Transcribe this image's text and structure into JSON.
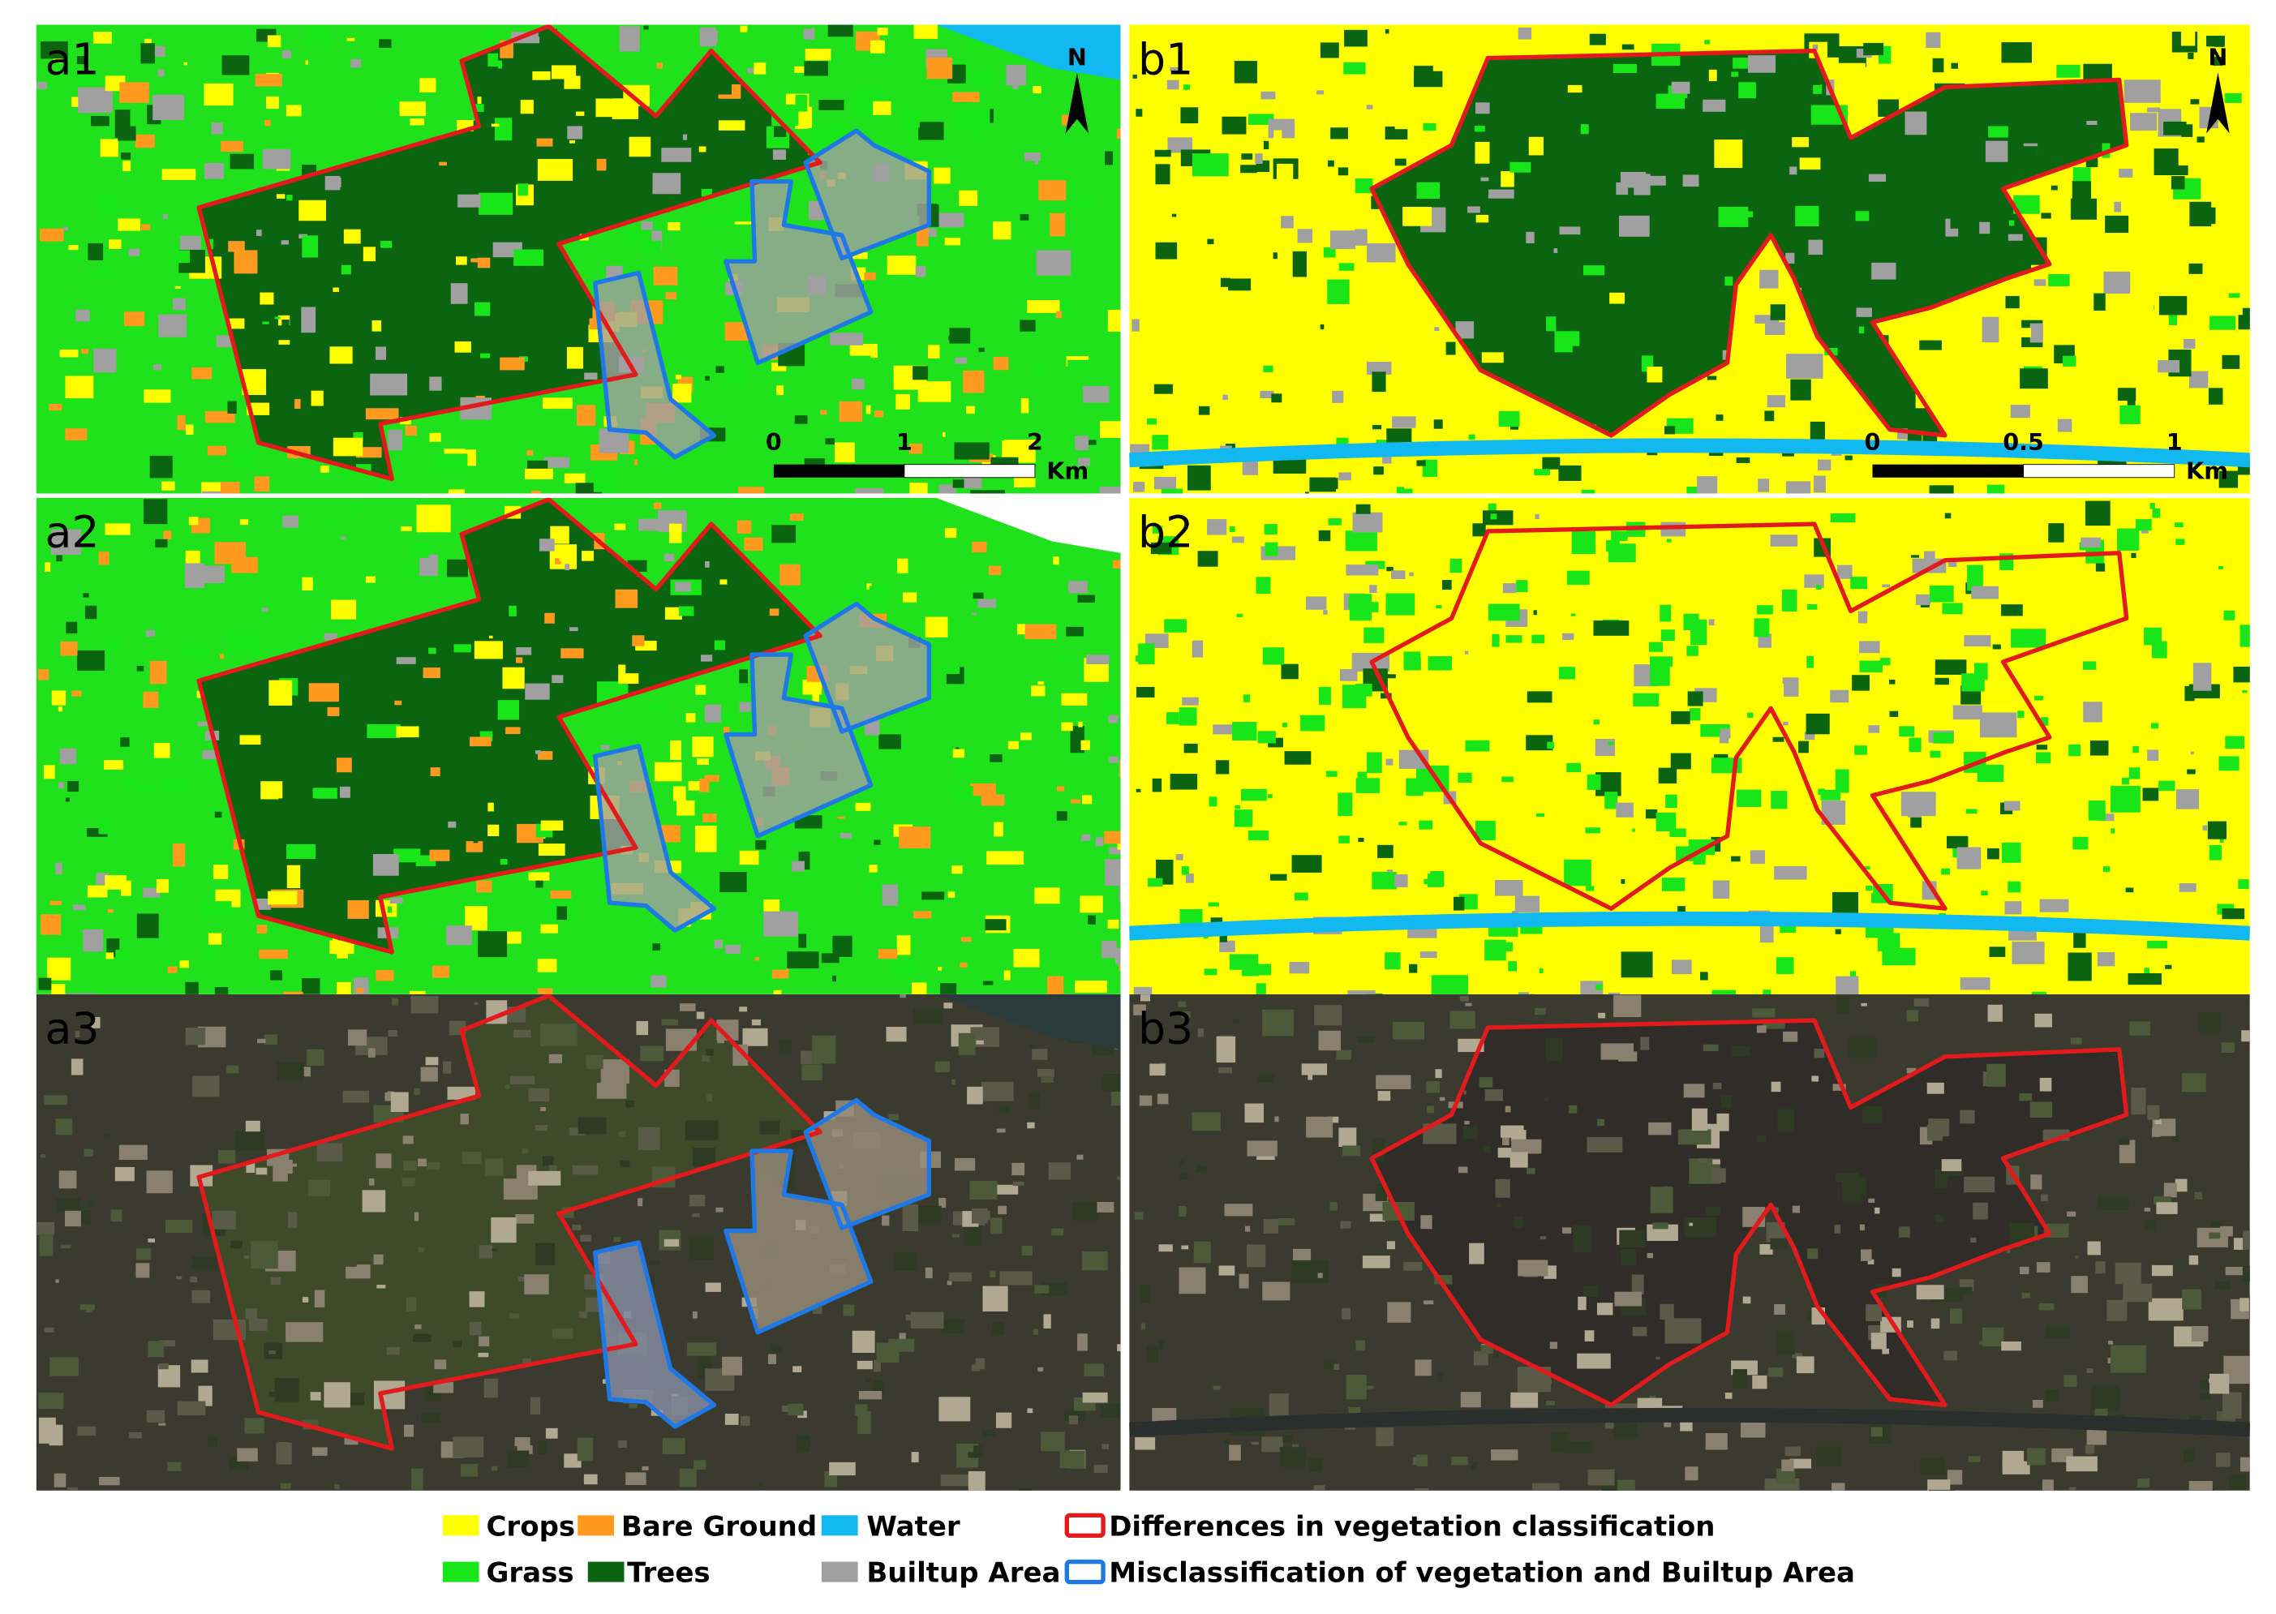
{
  "panels": [
    {
      "label": "a1"
    },
    {
      "label": "a2"
    },
    {
      "label": "a3"
    },
    {
      "label": "b1"
    },
    {
      "label": "b2"
    },
    {
      "label": "b3"
    }
  ],
  "north": "N",
  "scale_bars": {
    "a": {
      "ticks": [
        "0",
        "1",
        "2"
      ],
      "unit": "Km"
    },
    "b": {
      "ticks": [
        "0",
        "0.5",
        "1"
      ],
      "unit": "Km"
    }
  },
  "legend": [
    {
      "label": "Crops"
    },
    {
      "label": "Bare Ground"
    },
    {
      "label": "Water"
    },
    {
      "label": "Differences in vegetation classification"
    },
    {
      "label": "Grass"
    },
    {
      "label": "Trees"
    },
    {
      "label": "Builtup Area"
    },
    {
      "label": "Misclassification of vegetation and Builtup Area"
    }
  ]
}
